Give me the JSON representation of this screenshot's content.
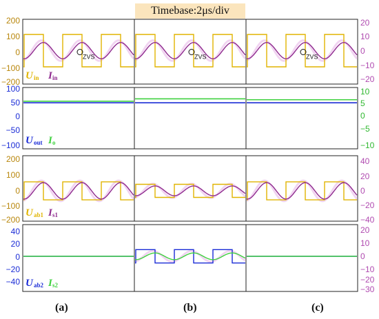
{
  "timebase": "Timebase:2μs/div",
  "captions": [
    "(a)",
    "(b)",
    "(c)"
  ],
  "annotation": "ZVS",
  "colors": {
    "yellow": "#e0b400",
    "magenta": "#8e2a8e",
    "blue": "#1a2bd6",
    "green": "#3fd13f",
    "left_axis": "#b8860b",
    "right_axis": "#b04ab0",
    "green_axis": "#2fb82f",
    "blue_axis": "#1a2bd6"
  },
  "chart_data": [
    {
      "type": "line",
      "row": 1,
      "left_axis": {
        "ticks": [
          "200",
          "100",
          "0",
          "−100",
          "−200"
        ],
        "ylim": [
          -200,
          200
        ]
      },
      "right_axis": {
        "ticks": [
          "20",
          "10",
          "0",
          "−10",
          "−20"
        ],
        "ylim": [
          -20,
          20
        ]
      },
      "legend": [
        {
          "main": "U",
          "sub": "in"
        },
        {
          "main": "I",
          "sub": "in"
        }
      ],
      "panels": {
        "a": {
          "square_amp": 100,
          "sine_amp": 5,
          "sine_phase": 0.15,
          "zvs": true
        },
        "b": {
          "square_amp": 100,
          "sine_amp": 5,
          "sine_phase": 0.15,
          "zvs": true
        },
        "c": {
          "square_amp": 100,
          "sine_amp": 5,
          "sine_phase": 0.15,
          "zvs": true
        }
      }
    },
    {
      "type": "line",
      "row": 2,
      "left_axis": {
        "ticks": [
          "100",
          "50",
          "0",
          "−50",
          "−100"
        ],
        "ylim": [
          -100,
          100
        ]
      },
      "right_axis": {
        "ticks": [
          "10",
          "5",
          "0",
          "−5",
          "−10"
        ],
        "ylim": [
          -10,
          10
        ]
      },
      "legend": [
        {
          "main": "U",
          "sub": "out"
        },
        {
          "main": "I",
          "sub": "o"
        }
      ],
      "panels": {
        "a": {
          "uout": 40,
          "io": 4.5
        },
        "b": {
          "uout": 40,
          "io": 5.3
        },
        "c": {
          "uout": 40,
          "io": 5.0
        }
      }
    },
    {
      "type": "line",
      "row": 3,
      "left_axis": {
        "ticks": [
          "200",
          "100",
          "0",
          "−100",
          "−200"
        ],
        "ylim": [
          -200,
          200
        ]
      },
      "right_axis": {
        "ticks": [
          "40",
          "20",
          "0",
          "−20",
          "−40"
        ],
        "ylim": [
          -40,
          40
        ]
      },
      "legend": [
        {
          "main": "U",
          "sub": "ab1"
        },
        {
          "main": "I",
          "sub": "s1"
        }
      ],
      "panels": {
        "a": {
          "square_amp": 55,
          "sine_amp": 10
        },
        "b": {
          "square_amp": 40,
          "sine_amp": 6
        },
        "c": {
          "square_amp": 55,
          "sine_amp": 10
        }
      }
    },
    {
      "type": "line",
      "row": 4,
      "left_axis": {
        "ticks": [
          "40",
          "20",
          "0",
          "−20",
          "−40"
        ],
        "ylim": [
          -50,
          50
        ]
      },
      "right_axis": {
        "ticks": [
          "20",
          "10",
          "0",
          "−10",
          "−20",
          "−30",
          "−40"
        ],
        "ylim": [
          -45,
          25
        ]
      },
      "legend": [
        {
          "main": "U",
          "sub": "ab2"
        },
        {
          "main": "I",
          "sub": "s2"
        }
      ],
      "panels": {
        "a": {
          "square_amp": 0,
          "sine_amp": 0
        },
        "b": {
          "square_amp": 10,
          "sine_amp": 3.5
        },
        "c": {
          "square_amp": 0,
          "sine_amp": 0
        }
      }
    }
  ]
}
